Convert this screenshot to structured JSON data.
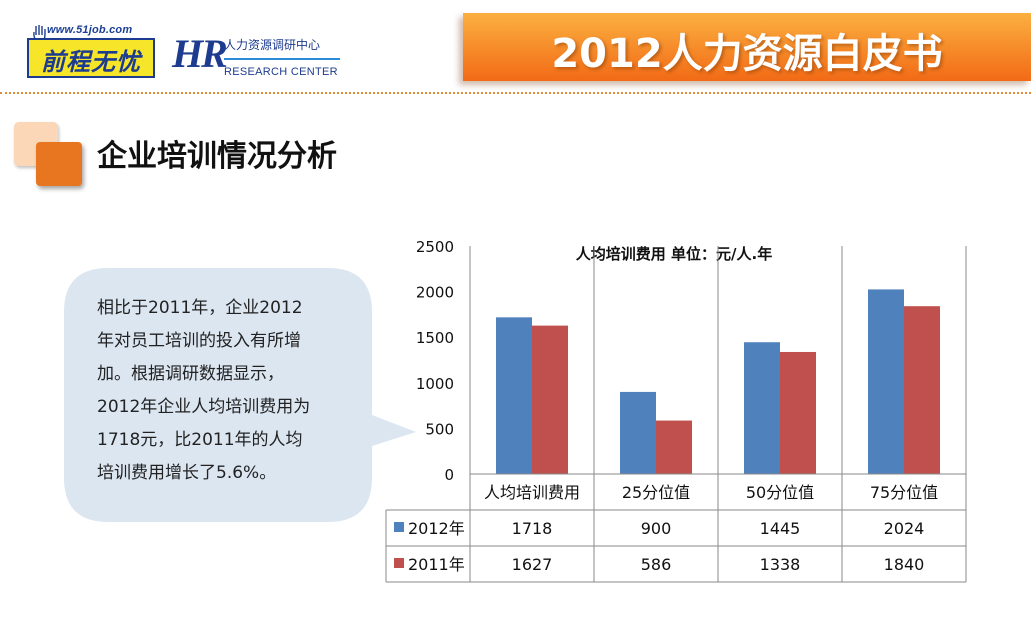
{
  "header": {
    "logo_url": "www.51job.com",
    "logo_name": "前程无忧",
    "research_logo_mark": "HR",
    "research_logo_cn": "人力资源调研中心",
    "research_logo_en": "RESEARCH CENTER",
    "banner_title": "2012人力资源白皮书"
  },
  "section": {
    "title": "企业培训情况分析"
  },
  "callout": {
    "lines": [
      "相比于2011年，企业2012",
      "年对员工培训的投入有所增",
      "加。根据调研数据显示，",
      "2012年企业人均培训费用为",
      "1718元，比2011年的人均",
      "培训费用增长了5.6%。"
    ]
  },
  "chart_data": {
    "type": "bar",
    "title": "人均培训费用  单位：元/人.年",
    "categories": [
      "人均培训费用",
      "25分位值",
      "50分位值",
      "75分位值"
    ],
    "series": [
      {
        "name": "2012年",
        "color": "#4f81bd",
        "values": [
          1718,
          900,
          1445,
          2024
        ]
      },
      {
        "name": "2011年",
        "color": "#c0504d",
        "values": [
          1627,
          586,
          1338,
          1840
        ]
      }
    ],
    "ylim": [
      0,
      2500
    ],
    "yticks": [
      0,
      500,
      1000,
      1500,
      2000,
      2500
    ],
    "grid": true,
    "legend": "data-table"
  }
}
